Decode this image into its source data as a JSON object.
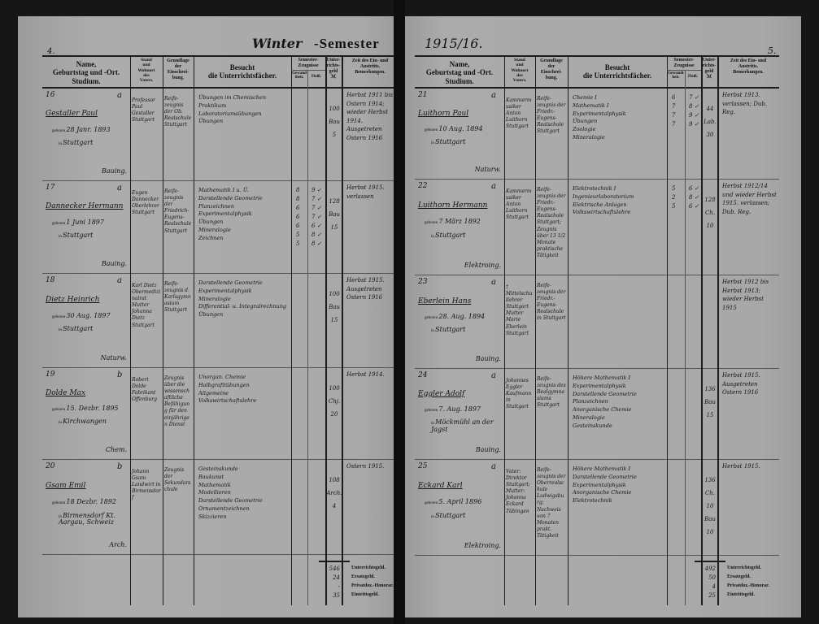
{
  "header": {
    "left_page_number": "4.",
    "right_page_number": "5.",
    "semester_handwritten": "Winter",
    "semester_printed": "-Semester",
    "year": "1915/16."
  },
  "columns": {
    "name": "Name,\nGeburtstag und -Ort.\nStudium.",
    "parent": "Stand\nund\nWohnort\ndes\nVaters.",
    "basis": "Grundlage\nder\nEinschrei-\nbung.",
    "subjects": "Besucht\ndie Unterrichtsfächer.",
    "certificates": "Semester-\nZeugnisse",
    "cert_diligence": "Gewandtheit.",
    "cert_progress": "Fleiß.",
    "fee": "Unter-\nrichts-\ngeld\nℳ",
    "remarks": "Zeit des Ein- und\nAustritts.\nBemerkungen."
  },
  "form": {
    "born_label": "geboren",
    "in_label": "in"
  },
  "left_rows": [
    {
      "no": "16",
      "cls": "a",
      "surname": "Gestaller",
      "given": "Paul",
      "born": "28 Janr. 1893",
      "place": "Stuttgart",
      "study": "Bauing.",
      "parent": "Professor Paul Gestaller Stuttgart",
      "basis": "Reife-zeugnis der Ob. Realschule Stuttgart",
      "subjects": [
        "Übungen im Chemischen",
        "Praktikum",
        "Laboratoriumsübungen",
        "Übungen"
      ],
      "grades": [],
      "fees": [
        "100",
        "Bau",
        "5"
      ],
      "remarks": "Herbst 1911 bis Ostern 1914; wieder Herbst 1914. Ausgetreten Ostern 1916"
    },
    {
      "no": "17",
      "cls": "a",
      "surname": "Dannecker",
      "given": "Hermann",
      "born": "1 Juni 1897",
      "place": "Stuttgart",
      "study": "Bauing.",
      "parent": "Eugen Dannecker Oberlehrer Stuttgart",
      "basis": "Reife-zeugnis der Friedrich-Eugens-Realschule Stuttgart",
      "subjects": [
        "Mathematik I u. Ü.",
        "Darstellende Geometrie",
        "Planzeichnen",
        "Experimentalphysik",
        "Übungen",
        "Mineralogie",
        "Zeichnen"
      ],
      "grades": [
        [
          "8",
          "9"
        ],
        [
          "8",
          "7"
        ],
        [
          "6",
          "7"
        ],
        [
          "6",
          "7"
        ],
        [
          "6",
          "6"
        ],
        [
          "5",
          "8"
        ],
        [
          "5",
          "8"
        ]
      ],
      "fees": [
        "128",
        "Bau",
        "15"
      ],
      "remarks": "Herbst 1915. verlassen"
    },
    {
      "no": "18",
      "cls": "a",
      "surname": "Dietz",
      "given": "Heinrich",
      "born": "30 Aug. 1897",
      "place": "Stuttgart",
      "study": "Naturw.",
      "parent": "Karl Dietz Obermedizinalrat Mutter Johanna Dietz Stuttgart",
      "basis": "Reife-zeugnis d. Karlsgymnasium Stuttgart",
      "subjects": [
        "Darstellende Geometrie",
        "Experimentalphysik",
        "Mineralogie",
        "Differential- u. Integralrechnung",
        "Übungen"
      ],
      "grades": [],
      "fees": [
        "100",
        "Bau",
        "15"
      ],
      "remarks": "Herbst 1915. Ausgetreten Ostern 1916"
    },
    {
      "no": "19",
      "cls": "b",
      "surname": "Dolde",
      "given": "Max",
      "born": "15. Dezbr. 1895",
      "place": "Kirchwangen",
      "study": "Chem.",
      "parent": "Robert Dolde Fabrikant Offenburg",
      "basis": "Zeugnis über die wissenschaftliche Befähigung für den einjährigen Dienst",
      "subjects": [
        "Unorgan. Chemie",
        "Halbgrafitübungen",
        "Allgemeine Volkswirtschaftslehre"
      ],
      "grades": [],
      "fees": [
        "100",
        "Chj.",
        "20"
      ],
      "remarks": "Herbst 1914."
    },
    {
      "no": "20",
      "cls": "b",
      "surname": "Gsam",
      "given": "Emil",
      "born": "18 Dezbr. 1892",
      "place": "Birmensdorf Kt. Aargau, Schweiz",
      "study": "Arch.",
      "parent": "Johann Gsam Landwirt in Birmensdorf",
      "basis": "Zeugnis der Sekundarschule",
      "subjects": [
        "Gesteinskunde",
        "Baukunst",
        "Mathematik",
        "Modellieren",
        "Darstellende Geometrie",
        "Ornamentzeichnen",
        "Skizzieren"
      ],
      "grades": [],
      "fees": [
        "108",
        "Arch.",
        "4"
      ],
      "remarks": "Ostern 1915."
    }
  ],
  "right_rows": [
    {
      "no": "21",
      "cls": "a",
      "surname": "Luithorn",
      "given": "Paul",
      "born": "10 Aug. 1894",
      "place": "Stuttgart",
      "study": "Naturw.",
      "parent": "Kammermusiker Anton Luithorn Stuttgart",
      "basis": "Reife-zeugnis der Friedr.-Eugens-Realschule Stuttgart",
      "subjects": [
        "Chemie I",
        "Mathematik I",
        "Experimentalphysik",
        "Übungen",
        "Zoologie",
        "Mineralogie"
      ],
      "grades": [
        [
          "6",
          "7"
        ],
        [
          "7",
          "8"
        ],
        [
          "7",
          "9"
        ],
        [
          "7",
          "9"
        ]
      ],
      "fees": [
        "44",
        "Lab.",
        "30"
      ],
      "remarks": "Herbst 1913. verlassen; Dub. Reg."
    },
    {
      "no": "22",
      "cls": "a",
      "surname": "Luithorn",
      "given": "Hermann",
      "born": "7 März 1892",
      "place": "Stuttgart",
      "study": "Elektroing.",
      "parent": "Kammermusiker Anton Luithorn Stuttgart",
      "basis": "Reife-zeugnis der Friedr.-Eugens-Realschule Stuttgart; Zeugnis über 13 1/2 Monate praktische Tätigkeit",
      "subjects": [
        "Elektrotechnik I",
        "Ingenieurlaboratorium",
        "Elektrische Anlagen",
        "Volkswirtschaftslehre"
      ],
      "grades": [
        [
          "5",
          "6"
        ],
        [
          "2",
          "8"
        ],
        [
          "5",
          "6"
        ]
      ],
      "fees": [
        "128",
        "Ch.",
        "10"
      ],
      "remarks": "Herbst 1912/14 und wieder Herbst 1915. verlassen; Dub. Reg."
    },
    {
      "no": "23",
      "cls": "a",
      "surname": "Eberlein",
      "given": "Hans",
      "born": "28. Aug. 1894",
      "place": "Stuttgart",
      "study": "Bauing.",
      "parent": "† Mittelschullehrer Stuttgart Mutter Marie Eberlein Stuttgart",
      "basis": "Reife-zeugnis der Friedr.-Eugens-Realschule in Stuttgart",
      "subjects": [],
      "grades": [],
      "fees": [],
      "remarks": "Herbst 1912 bis Herbst 1913; wieder Herbst 1915"
    },
    {
      "no": "24",
      "cls": "a",
      "surname": "Eggler",
      "given": "Adolf",
      "born": "7. Aug. 1897",
      "place": "Möckmühl an der Jagst",
      "study": "Bauing.",
      "parent": "Johannes Eggler Kaufmann in Stuttgart",
      "basis": "Reife-zeugnis des Realgymnasiums Stuttgart",
      "subjects": [
        "Höhere Mathematik I",
        "Experimentalphysik",
        "Darstellende Geometrie",
        "Planzeichnen",
        "Anorganische Chemie",
        "Mineralogie",
        "Gesteinskunde"
      ],
      "grades": [],
      "fees": [
        "136",
        "Bau",
        "15"
      ],
      "remarks": "Herbst 1915. Ausgetreten Ostern 1916"
    },
    {
      "no": "25",
      "cls": "a",
      "surname": "Eckard",
      "given": "Karl",
      "born": "5. April 1896",
      "place": "Stuttgart",
      "study": "Elektroing.",
      "parent": "Vater: Direktor Stuttgart; Mutter: Johanna Eckard Tübingen",
      "basis": "Reife-zeugnis der Oberrealschule Ludwigsburg; Nachweis von 7 Monaten prakt. Tätigkeit",
      "subjects": [
        "Höhere Mathematik I",
        "Darstellende Geometrie",
        "Experimentalphysik",
        "Anorganische Chemie",
        "Elektrotechnik"
      ],
      "grades": [],
      "fees": [
        "136",
        "Ch.",
        "10",
        "Bau",
        "10"
      ],
      "remarks": "Herbst 1915."
    }
  ],
  "totals_labels": [
    "Unterrichtsgeld.",
    "Ersatzgeld.",
    "Privatdoz.-Honorar.",
    "Eintrittsgeld."
  ],
  "left_totals": [
    "546",
    "24",
    "-",
    "35"
  ],
  "right_totals": [
    "492",
    "50",
    "4",
    "25"
  ]
}
